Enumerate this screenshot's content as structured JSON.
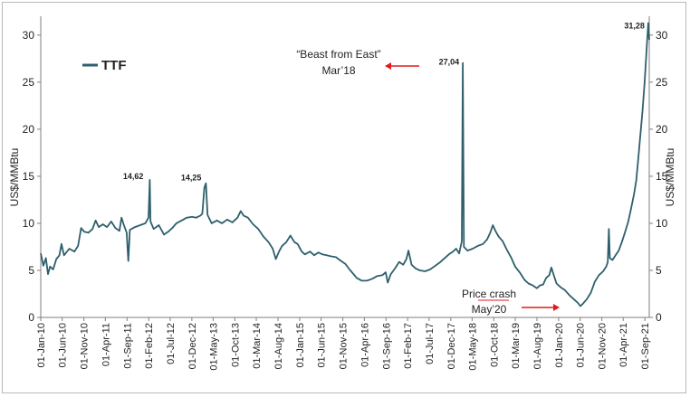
{
  "chart_data": {
    "type": "line",
    "title": "",
    "legend": {
      "position": "top-left",
      "entries": [
        "TTF"
      ]
    },
    "series": [
      {
        "name": "TTF",
        "color": "#2e5f6b"
      }
    ],
    "ylabel_left": "US$/MMBtu",
    "ylabel_right": "US$/MMBtu",
    "ylim": [
      0,
      32
    ],
    "yticks": [
      0,
      5,
      10,
      15,
      20,
      25,
      30
    ],
    "xlim": [
      2010.0,
      2021.75
    ],
    "xticks": [
      {
        "label": "01-Jan-10",
        "t": 2010.0
      },
      {
        "label": "01-Jun-10",
        "t": 2010.414
      },
      {
        "label": "01-Nov-10",
        "t": 2010.833
      },
      {
        "label": "01-Apr-11",
        "t": 2011.247
      },
      {
        "label": "01-Sep-11",
        "t": 2011.666
      },
      {
        "label": "01-Feb-12",
        "t": 2012.085
      },
      {
        "label": "01-Jul-12",
        "t": 2012.499
      },
      {
        "label": "01-Dec-12",
        "t": 2012.918
      },
      {
        "label": "01-May-13",
        "t": 2013.329
      },
      {
        "label": "01-Oct-13",
        "t": 2013.748
      },
      {
        "label": "01-Mar-14",
        "t": 2014.162
      },
      {
        "label": "01-Aug-14",
        "t": 2014.581
      },
      {
        "label": "01-Jan-15",
        "t": 2015.0
      },
      {
        "label": "01-Jun-15",
        "t": 2015.414
      },
      {
        "label": "01-Nov-15",
        "t": 2015.833
      },
      {
        "label": "01-Apr-16",
        "t": 2016.249
      },
      {
        "label": "01-Sep-16",
        "t": 2016.667
      },
      {
        "label": "01-Feb-17",
        "t": 2017.085
      },
      {
        "label": "01-Jul-17",
        "t": 2017.499
      },
      {
        "label": "01-Dec-17",
        "t": 2017.918
      },
      {
        "label": "01-May-18",
        "t": 2018.329
      },
      {
        "label": "01-Oct-18",
        "t": 2018.748
      },
      {
        "label": "01-Mar-19",
        "t": 2019.162
      },
      {
        "label": "01-Aug-19",
        "t": 2019.581
      },
      {
        "label": "01-Jan-20",
        "t": 2020.0
      },
      {
        "label": "01-Jun-20",
        "t": 2020.416
      },
      {
        "label": "01-Nov-20",
        "t": 2020.834
      },
      {
        "label": "01-Apr-21",
        "t": 2021.247
      },
      {
        "label": "01-Sep-21",
        "t": 2021.666
      }
    ],
    "points": [
      [
        2010.0,
        6.8
      ],
      [
        2010.05,
        5.5
      ],
      [
        2010.1,
        6.3
      ],
      [
        2010.14,
        4.6
      ],
      [
        2010.18,
        5.4
      ],
      [
        2010.24,
        5.1
      ],
      [
        2010.3,
        6.2
      ],
      [
        2010.36,
        6.6
      ],
      [
        2010.4,
        7.8
      ],
      [
        2010.45,
        6.6
      ],
      [
        2010.55,
        7.3
      ],
      [
        2010.65,
        7.0
      ],
      [
        2010.72,
        7.6
      ],
      [
        2010.78,
        9.5
      ],
      [
        2010.84,
        9.1
      ],
      [
        2010.92,
        9.0
      ],
      [
        2011.0,
        9.4
      ],
      [
        2011.06,
        10.3
      ],
      [
        2011.12,
        9.6
      ],
      [
        2011.2,
        9.9
      ],
      [
        2011.28,
        9.6
      ],
      [
        2011.36,
        10.2
      ],
      [
        2011.44,
        9.5
      ],
      [
        2011.52,
        9.2
      ],
      [
        2011.56,
        10.6
      ],
      [
        2011.6,
        9.9
      ],
      [
        2011.66,
        9.0
      ],
      [
        2011.69,
        6.0
      ],
      [
        2011.72,
        9.3
      ],
      [
        2011.82,
        9.6
      ],
      [
        2011.92,
        9.8
      ],
      [
        2012.02,
        10.0
      ],
      [
        2012.08,
        10.6
      ],
      [
        2012.105,
        14.62
      ],
      [
        2012.12,
        10.2
      ],
      [
        2012.18,
        9.4
      ],
      [
        2012.28,
        9.8
      ],
      [
        2012.38,
        8.8
      ],
      [
        2012.46,
        9.1
      ],
      [
        2012.54,
        9.5
      ],
      [
        2012.62,
        10.0
      ],
      [
        2012.72,
        10.3
      ],
      [
        2012.82,
        10.6
      ],
      [
        2012.92,
        10.7
      ],
      [
        2013.0,
        10.6
      ],
      [
        2013.08,
        10.8
      ],
      [
        2013.12,
        11.0
      ],
      [
        2013.16,
        13.8
      ],
      [
        2013.19,
        14.25
      ],
      [
        2013.22,
        10.9
      ],
      [
        2013.3,
        10.0
      ],
      [
        2013.4,
        10.3
      ],
      [
        2013.5,
        10.0
      ],
      [
        2013.6,
        10.4
      ],
      [
        2013.7,
        10.1
      ],
      [
        2013.8,
        10.6
      ],
      [
        2013.86,
        11.3
      ],
      [
        2013.92,
        10.8
      ],
      [
        2014.0,
        10.6
      ],
      [
        2014.1,
        9.9
      ],
      [
        2014.2,
        9.4
      ],
      [
        2014.3,
        8.6
      ],
      [
        2014.4,
        8.0
      ],
      [
        2014.48,
        7.3
      ],
      [
        2014.54,
        6.2
      ],
      [
        2014.6,
        7.0
      ],
      [
        2014.66,
        7.6
      ],
      [
        2014.74,
        8.0
      ],
      [
        2014.82,
        8.7
      ],
      [
        2014.9,
        8.0
      ],
      [
        2014.96,
        7.8
      ],
      [
        2015.04,
        7.0
      ],
      [
        2015.1,
        6.7
      ],
      [
        2015.2,
        7.0
      ],
      [
        2015.28,
        6.6
      ],
      [
        2015.36,
        6.9
      ],
      [
        2015.44,
        6.7
      ],
      [
        2015.52,
        6.6
      ],
      [
        2015.6,
        6.5
      ],
      [
        2015.7,
        6.4
      ],
      [
        2015.8,
        6.0
      ],
      [
        2015.88,
        5.7
      ],
      [
        2015.96,
        5.1
      ],
      [
        2016.04,
        4.6
      ],
      [
        2016.1,
        4.2
      ],
      [
        2016.2,
        3.9
      ],
      [
        2016.3,
        3.9
      ],
      [
        2016.4,
        4.1
      ],
      [
        2016.5,
        4.4
      ],
      [
        2016.6,
        4.5
      ],
      [
        2016.66,
        4.8
      ],
      [
        2016.7,
        3.7
      ],
      [
        2016.76,
        4.6
      ],
      [
        2016.84,
        5.2
      ],
      [
        2016.92,
        5.9
      ],
      [
        2017.0,
        5.6
      ],
      [
        2017.06,
        6.2
      ],
      [
        2017.1,
        7.1
      ],
      [
        2017.16,
        5.6
      ],
      [
        2017.24,
        5.2
      ],
      [
        2017.32,
        5.0
      ],
      [
        2017.42,
        4.9
      ],
      [
        2017.52,
        5.1
      ],
      [
        2017.62,
        5.5
      ],
      [
        2017.72,
        5.9
      ],
      [
        2017.8,
        6.3
      ],
      [
        2017.88,
        6.7
      ],
      [
        2017.96,
        7.0
      ],
      [
        2018.02,
        7.3
      ],
      [
        2018.08,
        6.8
      ],
      [
        2018.13,
        8.1
      ],
      [
        2018.15,
        27.04
      ],
      [
        2018.17,
        7.5
      ],
      [
        2018.24,
        7.1
      ],
      [
        2018.34,
        7.3
      ],
      [
        2018.44,
        7.6
      ],
      [
        2018.54,
        7.8
      ],
      [
        2018.62,
        8.3
      ],
      [
        2018.68,
        9.0
      ],
      [
        2018.73,
        9.8
      ],
      [
        2018.78,
        9.2
      ],
      [
        2018.84,
        8.6
      ],
      [
        2018.92,
        8.1
      ],
      [
        2019.0,
        7.2
      ],
      [
        2019.08,
        6.4
      ],
      [
        2019.16,
        5.4
      ],
      [
        2019.26,
        4.7
      ],
      [
        2019.34,
        4.0
      ],
      [
        2019.42,
        3.6
      ],
      [
        2019.5,
        3.4
      ],
      [
        2019.58,
        3.1
      ],
      [
        2019.64,
        3.4
      ],
      [
        2019.7,
        3.5
      ],
      [
        2019.76,
        4.2
      ],
      [
        2019.82,
        4.5
      ],
      [
        2019.86,
        5.3
      ],
      [
        2019.9,
        4.6
      ],
      [
        2019.96,
        3.6
      ],
      [
        2020.04,
        3.2
      ],
      [
        2020.12,
        2.9
      ],
      [
        2020.22,
        2.3
      ],
      [
        2020.3,
        1.9
      ],
      [
        2020.38,
        1.5
      ],
      [
        2020.42,
        1.2
      ],
      [
        2020.46,
        1.4
      ],
      [
        2020.54,
        1.9
      ],
      [
        2020.62,
        2.6
      ],
      [
        2020.7,
        3.8
      ],
      [
        2020.78,
        4.5
      ],
      [
        2020.86,
        4.9
      ],
      [
        2020.92,
        5.4
      ],
      [
        2020.95,
        5.9
      ],
      [
        2020.97,
        9.4
      ],
      [
        2020.99,
        6.3
      ],
      [
        2021.04,
        6.1
      ],
      [
        2021.1,
        6.6
      ],
      [
        2021.16,
        7.1
      ],
      [
        2021.22,
        8.0
      ],
      [
        2021.28,
        9.0
      ],
      [
        2021.34,
        10.1
      ],
      [
        2021.4,
        11.6
      ],
      [
        2021.46,
        13.2
      ],
      [
        2021.5,
        14.6
      ],
      [
        2021.54,
        17.0
      ],
      [
        2021.58,
        19.5
      ],
      [
        2021.62,
        22.0
      ],
      [
        2021.66,
        25.0
      ],
      [
        2021.7,
        28.5
      ],
      [
        2021.73,
        31.28
      ],
      [
        2021.75,
        29.5
      ]
    ],
    "peak_labels": [
      {
        "text": "14,62",
        "t": 2012.105,
        "v": 14.62
      },
      {
        "text": "14,25",
        "t": 2013.19,
        "v": 14.25
      },
      {
        "text": "27,04",
        "t": 2018.15,
        "v": 27.04
      },
      {
        "text": "31,28",
        "t": 2021.73,
        "v": 31.28
      }
    ],
    "annotations": {
      "beast_line1": "“Beast from East”",
      "beast_line2": "Mar’18",
      "crash_line1": "Price crash",
      "crash_line2": "May’20",
      "arrow_color": "#e31a1c"
    }
  }
}
